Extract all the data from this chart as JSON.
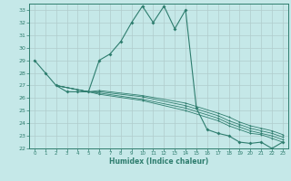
{
  "xlabel": "Humidex (Indice chaleur)",
  "bg_color": "#c5e8e8",
  "grid_color": "#b0cccc",
  "line_color": "#2e7d6e",
  "xlim": [
    -0.5,
    23.5
  ],
  "ylim": [
    22,
    33.5
  ],
  "yticks": [
    22,
    23,
    24,
    25,
    26,
    27,
    28,
    29,
    30,
    31,
    32,
    33
  ],
  "xticks": [
    0,
    1,
    2,
    3,
    4,
    5,
    6,
    7,
    8,
    9,
    10,
    11,
    12,
    13,
    14,
    15,
    16,
    17,
    18,
    19,
    20,
    21,
    22,
    23
  ],
  "series": [
    [
      0,
      29.0
    ],
    [
      1,
      28.0
    ],
    [
      2,
      27.0
    ],
    [
      3,
      26.5
    ],
    [
      4,
      26.5
    ],
    [
      5,
      26.5
    ],
    [
      6,
      29.0
    ],
    [
      7,
      29.5
    ],
    [
      8,
      30.5
    ],
    [
      9,
      32.0
    ],
    [
      10,
      33.3
    ],
    [
      11,
      32.0
    ],
    [
      12,
      33.3
    ],
    [
      13,
      31.5
    ],
    [
      14,
      33.0
    ],
    [
      15,
      25.2
    ],
    [
      16,
      23.5
    ],
    [
      17,
      23.2
    ],
    [
      18,
      23.0
    ],
    [
      19,
      22.5
    ],
    [
      20,
      22.4
    ],
    [
      21,
      22.5
    ],
    [
      22,
      22.0
    ],
    [
      23,
      22.5
    ]
  ],
  "diag_lines": [
    [
      [
        2,
        27.0
      ],
      [
        5,
        26.5
      ],
      [
        6,
        26.3
      ],
      [
        10,
        25.8
      ],
      [
        14,
        25.0
      ],
      [
        17,
        24.2
      ],
      [
        18,
        23.8
      ],
      [
        19,
        23.5
      ],
      [
        20,
        23.2
      ],
      [
        21,
        23.1
      ],
      [
        22,
        22.8
      ],
      [
        23,
        22.5
      ]
    ],
    [
      [
        2,
        27.0
      ],
      [
        5,
        26.5
      ],
      [
        6,
        26.4
      ],
      [
        10,
        25.9
      ],
      [
        14,
        25.2
      ],
      [
        17,
        24.4
      ],
      [
        18,
        24.0
      ],
      [
        19,
        23.7
      ],
      [
        20,
        23.4
      ],
      [
        21,
        23.2
      ],
      [
        22,
        23.0
      ],
      [
        23,
        22.7
      ]
    ],
    [
      [
        2,
        27.0
      ],
      [
        5,
        26.5
      ],
      [
        6,
        26.5
      ],
      [
        10,
        26.1
      ],
      [
        14,
        25.4
      ],
      [
        17,
        24.6
      ],
      [
        18,
        24.2
      ],
      [
        19,
        23.9
      ],
      [
        20,
        23.6
      ],
      [
        21,
        23.4
      ],
      [
        22,
        23.2
      ],
      [
        23,
        22.9
      ]
    ],
    [
      [
        2,
        27.0
      ],
      [
        5,
        26.5
      ],
      [
        6,
        26.6
      ],
      [
        10,
        26.2
      ],
      [
        14,
        25.6
      ],
      [
        17,
        24.8
      ],
      [
        18,
        24.5
      ],
      [
        19,
        24.1
      ],
      [
        20,
        23.8
      ],
      [
        21,
        23.6
      ],
      [
        22,
        23.4
      ],
      [
        23,
        23.1
      ]
    ]
  ]
}
